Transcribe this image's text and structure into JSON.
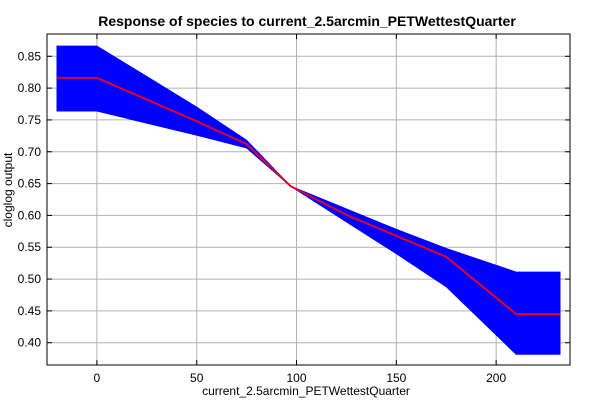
{
  "chart_data": {
    "type": "line",
    "title": "Response of species to current_2.5arcmin_PETWettestQuarter",
    "xlabel": "current_2.5arcmin_PETWettestQuarter",
    "ylabel": "cloglog output",
    "xlim": [
      -25,
      237
    ],
    "ylim": [
      0.365,
      0.885
    ],
    "xticks": [
      0,
      50,
      100,
      150,
      200
    ],
    "yticks": [
      0.4,
      0.45,
      0.5,
      0.55,
      0.6,
      0.65,
      0.7,
      0.75,
      0.8,
      0.85
    ],
    "ytick_labels": [
      "0.40",
      "0.45",
      "0.50",
      "0.55",
      "0.60",
      "0.65",
      "0.70",
      "0.75",
      "0.80",
      "0.85"
    ],
    "grid": true,
    "colors": {
      "mean_line": "#e0002a",
      "band": "#0000ff",
      "grid": "#b0b0b0"
    },
    "series": [
      {
        "role": "mean",
        "x": [
          -20,
          0,
          25,
          50,
          75,
          97,
          125,
          150,
          175,
          210,
          232
        ],
        "y": [
          0.816,
          0.816,
          0.782,
          0.748,
          0.712,
          0.646,
          0.601,
          0.568,
          0.535,
          0.445,
          0.445
        ]
      },
      {
        "role": "upper",
        "x": [
          -20,
          0,
          25,
          50,
          75,
          97,
          125,
          150,
          175,
          210,
          232
        ],
        "y": [
          0.866,
          0.866,
          0.818,
          0.77,
          0.718,
          0.646,
          0.61,
          0.578,
          0.548,
          0.511,
          0.511
        ]
      },
      {
        "role": "lower",
        "x": [
          -20,
          0,
          25,
          50,
          75,
          97,
          125,
          150,
          175,
          210,
          232
        ],
        "y": [
          0.764,
          0.764,
          0.745,
          0.726,
          0.706,
          0.646,
          0.59,
          0.54,
          0.488,
          0.382,
          0.382
        ]
      }
    ]
  }
}
